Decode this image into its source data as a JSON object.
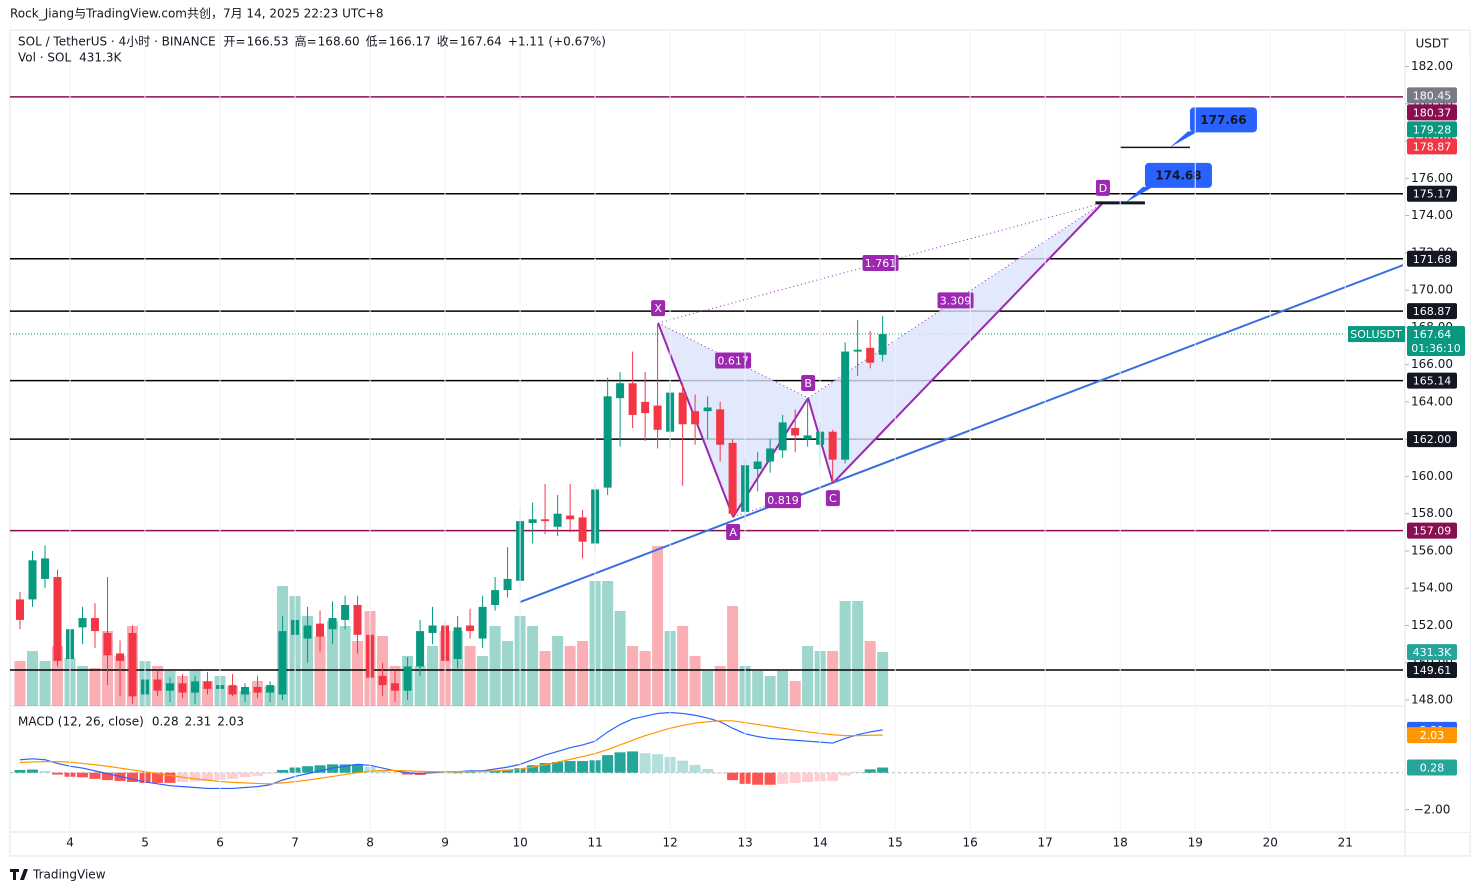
{
  "chart_data": {
    "type": "candlestick",
    "title": "Rock_Jiang与TradingView.com共创，7月 14, 2025 22:23 UTC+8",
    "symbol": "SOL / TetherUS · 4小时 · BINANCE",
    "ohlc": [
      {
        "name": "开=",
        "value": "166.53"
      },
      {
        "name": "高=",
        "value": "168.60"
      },
      {
        "name": "低=",
        "value": "166.17"
      },
      {
        "name": "收=",
        "value": "167.64"
      }
    ],
    "change": "+1.11 (+0.67%)",
    "volume_name": "Vol · SOL",
    "volume_last_label": "431.3K",
    "currency": "USDT",
    "brand": "TradingView",
    "xlim": [
      3.2,
      21.77
    ],
    "xticks": [
      4,
      5,
      6,
      7,
      8,
      9,
      10,
      11,
      12,
      13,
      14,
      15,
      16,
      17,
      18,
      19,
      20,
      21
    ],
    "ylim": [
      147.68,
      182.24
    ],
    "yticks": [
      {
        "value": 148,
        "label": "148.00"
      },
      {
        "value": 150,
        "label": "150.00"
      },
      {
        "value": 152,
        "label": "152.00"
      },
      {
        "value": 154,
        "label": "154.00"
      },
      {
        "value": 156,
        "label": "156.00"
      },
      {
        "value": 158,
        "label": "158.00"
      },
      {
        "value": 160,
        "label": "160.00"
      },
      {
        "value": 162,
        "label": "162.00"
      },
      {
        "value": 164,
        "label": "164.00"
      },
      {
        "value": 166,
        "label": "166.00"
      },
      {
        "value": 168,
        "label": "168.00"
      },
      {
        "value": 170,
        "label": "170.00"
      },
      {
        "value": 172,
        "label": "172.00"
      },
      {
        "value": 174,
        "label": "174.00"
      },
      {
        "value": 176,
        "label": "176.00"
      },
      {
        "value": 178,
        "label": "178.00"
      },
      {
        "value": 180,
        "label": "180.00"
      },
      {
        "value": 182,
        "label": "182.00"
      }
    ],
    "grid": true,
    "up_color": "#089981",
    "down_color": "#f23645",
    "x": [
      3.333,
      3.5,
      3.667,
      3.833,
      4,
      4.167,
      4.333,
      4.5,
      4.667,
      4.833,
      5,
      5.167,
      5.333,
      5.5,
      5.667,
      5.833,
      6,
      6.167,
      6.333,
      6.5,
      6.667,
      6.833,
      7,
      7.167,
      7.333,
      7.5,
      7.667,
      7.833,
      8,
      8.167,
      8.333,
      8.5,
      8.667,
      8.833,
      9,
      9.167,
      9.333,
      9.5,
      9.667,
      9.833,
      10,
      10.167,
      10.333,
      10.5,
      10.667,
      10.833,
      11,
      11.167,
      11.333,
      11.5,
      11.667,
      11.833,
      12,
      12.167,
      12.333,
      12.5,
      12.667,
      12.833,
      13,
      13.167,
      13.333,
      13.5,
      13.667,
      13.833,
      14,
      14.167,
      14.333,
      14.5,
      14.667,
      14.833
    ],
    "open": [
      153.4,
      153.4,
      154.5,
      154.6,
      150.2,
      151.9,
      152.4,
      151.6,
      150.5,
      151.6,
      148.3,
      149.1,
      148.5,
      148.9,
      148.4,
      149,
      148.6,
      148.8,
      148.3,
      148.7,
      148.4,
      148.3,
      151.5,
      151.3,
      152.1,
      151.8,
      152.3,
      153.1,
      151.5,
      149.3,
      148.9,
      148.5,
      149.8,
      151.6,
      152,
      150.2,
      152,
      151.3,
      153.1,
      153.9,
      154.4,
      157.5,
      157.7,
      157.3,
      157.9,
      157.8,
      156.4,
      159.4,
      164.2,
      165,
      164,
      163.8,
      162.4,
      164.5,
      163.5,
      163.5,
      163.6,
      161.8,
      158.1,
      160.4,
      160.8,
      161.4,
      162.6,
      162,
      161.7,
      162.4,
      160.9,
      166.7,
      166.9,
      166.53
    ],
    "high": [
      153.8,
      156,
      156.3,
      155,
      152.5,
      153,
      153.2,
      154.6,
      151.2,
      152,
      149.5,
      149.6,
      149.2,
      149.4,
      149.3,
      149.5,
      149.1,
      149.4,
      148.9,
      149.3,
      149,
      152.5,
      153,
      153,
      152.8,
      153.3,
      153.6,
      153.6,
      152,
      150,
      149.6,
      150.3,
      152.3,
      153,
      152.3,
      152.5,
      152.9,
      153.6,
      154.6,
      156.2,
      158.3,
      158.6,
      159.6,
      159,
      159.6,
      158.2,
      159.6,
      165.3,
      165.6,
      166.7,
      165.6,
      168.2,
      165,
      165,
      164.4,
      164.3,
      164,
      162,
      161,
      161.3,
      162,
      163.3,
      163.6,
      164.2,
      162.9,
      162.5,
      167.2,
      168.4,
      167.8,
      168.6
    ],
    "low": [
      151.8,
      153,
      154,
      149.8,
      149.7,
      151,
      150.8,
      148.8,
      148.2,
      147.8,
      147.9,
      148.2,
      147.9,
      148.1,
      147.8,
      148.3,
      148,
      148.2,
      147.9,
      148.1,
      147.9,
      148,
      150.5,
      150,
      150.6,
      151,
      151.8,
      150.5,
      148.5,
      148.2,
      147.9,
      148,
      149.3,
      151,
      149.8,
      149.7,
      151.3,
      150.8,
      152.8,
      153.5,
      154,
      156.4,
      156.9,
      156.8,
      157,
      155.6,
      156,
      159,
      161.6,
      162.6,
      161.9,
      161.5,
      161.5,
      159.5,
      161.7,
      162,
      160.8,
      157.8,
      157.6,
      159.2,
      160.2,
      161,
      161.3,
      161.6,
      160.6,
      159.6,
      160.7,
      165.4,
      165.8,
      166.17
    ],
    "close": [
      152.3,
      155.5,
      155.6,
      150.1,
      151.8,
      152.4,
      151.7,
      150.4,
      150.1,
      148.2,
      149.1,
      148.5,
      148.9,
      148.4,
      149,
      148.6,
      148.8,
      148.3,
      148.7,
      148.4,
      148.8,
      151.7,
      152.3,
      152,
      151.4,
      152.4,
      153.1,
      151.5,
      149.2,
      148.8,
      148.5,
      149.8,
      151.7,
      152,
      150.1,
      151.9,
      151.7,
      153,
      153.9,
      154.5,
      157.6,
      157.7,
      157.6,
      158,
      157.7,
      156.5,
      159.3,
      164.3,
      165,
      163.3,
      163.4,
      162.5,
      164.5,
      162.8,
      162.8,
      163.7,
      161.7,
      158,
      160.6,
      160.8,
      161.5,
      162.9,
      162.2,
      162.2,
      162.4,
      160.9,
      166.7,
      166.8,
      166.1,
      167.64
    ],
    "volume": [
      360000,
      440000,
      360000,
      480000,
      384000,
      320000,
      304000,
      600000,
      400000,
      640000,
      360000,
      320000,
      280000,
      240000,
      280000,
      200000,
      240000,
      160000,
      120000,
      200000,
      160000,
      960000,
      880000,
      720000,
      560000,
      680000,
      640000,
      520000,
      760000,
      560000,
      320000,
      400000,
      320000,
      480000,
      600000,
      600000,
      480000,
      400000,
      640000,
      520000,
      720000,
      640000,
      440000,
      560000,
      480000,
      520000,
      1000000,
      1000000,
      760000,
      480000,
      440000,
      1280000,
      600000,
      640000,
      400000,
      280000,
      320000,
      800000,
      320000,
      280000,
      240000,
      280000,
      200000,
      480000,
      440000,
      440000,
      840000,
      840000,
      520000,
      431300
    ],
    "vlim": [
      0,
      1408000
    ],
    "levels": [
      {
        "value": 180.37,
        "label": "180.37",
        "color": "#880e4f"
      },
      {
        "value": 175.17,
        "label": "175.17",
        "color": "#000000"
      },
      {
        "value": 171.68,
        "label": "171.68",
        "color": "#000000"
      },
      {
        "value": 168.87,
        "label": "168.87",
        "color": "#000000"
      },
      {
        "value": 165.14,
        "label": "165.14",
        "color": "#000000"
      },
      {
        "value": 162,
        "label": "162.00",
        "color": "#000000"
      },
      {
        "value": 157.09,
        "label": "157.09",
        "color": "#880e4f"
      },
      {
        "value": 149.61,
        "label": "149.61",
        "color": "#000000"
      }
    ],
    "price_badges": [
      {
        "value": 180.45,
        "label": "180.45",
        "color": "#787b86"
      },
      {
        "value": 179.28,
        "label": "179.28",
        "color": "#089981"
      },
      {
        "value": 178.87,
        "label": "178.87",
        "color": "#f23645"
      }
    ],
    "last_price": {
      "name": "SOLUSDT",
      "value": 167.64,
      "countdown": "01:36:10",
      "color": "#089981"
    },
    "trendline": {
      "x": [
        10,
        21.77
      ],
      "y": [
        153.26,
        171.34
      ],
      "color": "#3b6fe0"
    },
    "pattern": {
      "color": "#9c27b0",
      "fill": "#dbe4fb",
      "points": [
        {
          "label": "X",
          "x": 11.84,
          "y": 168.23
        },
        {
          "label": "A",
          "x": 12.84,
          "y": 157.82
        },
        {
          "label": "B",
          "x": 13.84,
          "y": 164.21
        },
        {
          "label": "C",
          "x": 14.17,
          "y": 159.64
        },
        {
          "label": "D",
          "x": 17.77,
          "y": 174.68
        }
      ],
      "ratios": [
        0.617,
        0.819,
        3.309,
        1.761
      ]
    },
    "targets": [
      {
        "value": 177.66,
        "x": [
          18,
          18.93
        ]
      },
      {
        "value": 174.68,
        "x": [
          17.67,
          18.33
        ]
      }
    ],
    "target_color": "#2962ff",
    "macd": {
      "name": "MACD (12, 26, close)",
      "macd_color": "#2962ff",
      "signal_color": "#ff9800",
      "mlim": [
        -3.2,
        3.6
      ],
      "yticks": [
        {
          "value": -2,
          "label": "−2.00"
        }
      ],
      "macd": [
        0.7,
        0.75,
        0.7,
        0.5,
        0.35,
        0.25,
        0.1,
        -0.05,
        -0.2,
        -0.35,
        -0.5,
        -0.6,
        -0.7,
        -0.75,
        -0.8,
        -0.85,
        -0.85,
        -0.85,
        -0.8,
        -0.75,
        -0.65,
        -0.4,
        -0.2,
        -0.05,
        0.1,
        0.25,
        0.35,
        0.45,
        0.4,
        0.25,
        0.1,
        0,
        -0.05,
        0,
        0.05,
        0.05,
        0.1,
        0.1,
        0.2,
        0.3,
        0.45,
        0.7,
        0.95,
        1.15,
        1.35,
        1.5,
        1.7,
        2.2,
        2.6,
        2.9,
        3.05,
        3.2,
        3.25,
        3.2,
        3.1,
        2.95,
        2.75,
        2.4,
        2.1,
        1.95,
        1.85,
        1.8,
        1.75,
        1.7,
        1.65,
        1.6,
        1.85,
        2.05,
        2.2,
        2.31
      ],
      "signal": [
        0.55,
        0.58,
        0.6,
        0.6,
        0.57,
        0.5,
        0.43,
        0.35,
        0.25,
        0.15,
        0.05,
        -0.05,
        -0.15,
        -0.25,
        -0.33,
        -0.4,
        -0.47,
        -0.52,
        -0.55,
        -0.58,
        -0.6,
        -0.55,
        -0.48,
        -0.4,
        -0.3,
        -0.2,
        -0.1,
        0,
        0.08,
        0.12,
        0.12,
        0.1,
        0.07,
        0.05,
        0.05,
        0.05,
        0.06,
        0.07,
        0.1,
        0.14,
        0.2,
        0.3,
        0.43,
        0.57,
        0.72,
        0.87,
        1.03,
        1.25,
        1.5,
        1.75,
        2,
        2.2,
        2.4,
        2.55,
        2.68,
        2.75,
        2.8,
        2.8,
        2.7,
        2.6,
        2.5,
        2.4,
        2.3,
        2.2,
        2.12,
        2.05,
        2,
        2,
        2.02,
        2.03
      ],
      "histogram": [
        0.15,
        0.17,
        0.1,
        -0.1,
        -0.22,
        -0.25,
        -0.33,
        -0.4,
        -0.45,
        -0.5,
        -0.55,
        -0.55,
        -0.55,
        -0.5,
        -0.47,
        -0.45,
        -0.38,
        -0.33,
        -0.25,
        -0.17,
        -0.05,
        0.15,
        0.28,
        0.35,
        0.4,
        0.45,
        0.45,
        0.45,
        0.32,
        0.13,
        -0.02,
        -0.1,
        -0.12,
        -0.05,
        0,
        0,
        0.04,
        0.03,
        0.1,
        0.16,
        0.25,
        0.4,
        0.52,
        0.58,
        0.63,
        0.63,
        0.67,
        0.95,
        1.1,
        1.15,
        1.05,
        1,
        0.85,
        0.65,
        0.42,
        0.2,
        -0.05,
        -0.4,
        -0.6,
        -0.65,
        -0.65,
        -0.6,
        -0.55,
        -0.5,
        -0.47,
        -0.45,
        -0.15,
        0.05,
        0.18,
        0.28
      ]
    }
  }
}
